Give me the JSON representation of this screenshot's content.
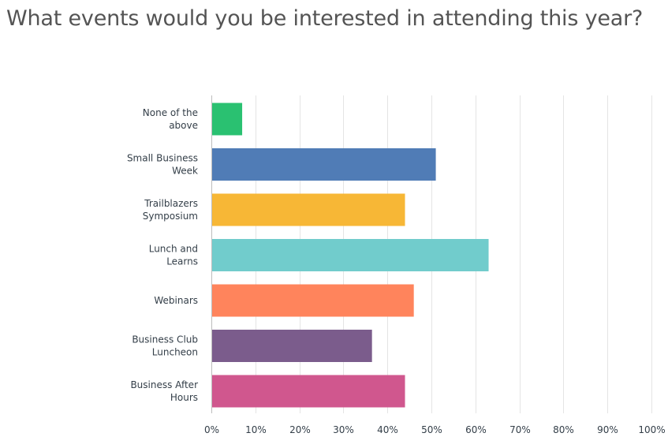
{
  "question": {
    "title": "What events would you be interested in attending this year?"
  },
  "chart_data": {
    "type": "bar",
    "orientation": "horizontal",
    "categories": [
      [
        "None of the",
        "above"
      ],
      [
        "Small Business",
        "Week"
      ],
      [
        "Trailblazers",
        "Symposium"
      ],
      [
        "Lunch and",
        "Learns"
      ],
      [
        "Webinars"
      ],
      [
        "Business Club",
        "Luncheon"
      ],
      [
        "Business After",
        "Hours"
      ]
    ],
    "values": [
      7,
      51,
      44,
      63,
      46,
      36.5,
      44
    ],
    "colors": [
      "#2ac171",
      "#507cb6",
      "#f7b736",
      "#71cccc",
      "#ff845c",
      "#7b5c8c",
      "#d0578e"
    ],
    "x_ticks": [
      "0%",
      "10%",
      "20%",
      "30%",
      "40%",
      "50%",
      "60%",
      "70%",
      "80%",
      "90%",
      "100%"
    ],
    "xlim": [
      0,
      100
    ],
    "grid": true,
    "legend": "none",
    "title": "",
    "xlabel": "",
    "ylabel": ""
  }
}
